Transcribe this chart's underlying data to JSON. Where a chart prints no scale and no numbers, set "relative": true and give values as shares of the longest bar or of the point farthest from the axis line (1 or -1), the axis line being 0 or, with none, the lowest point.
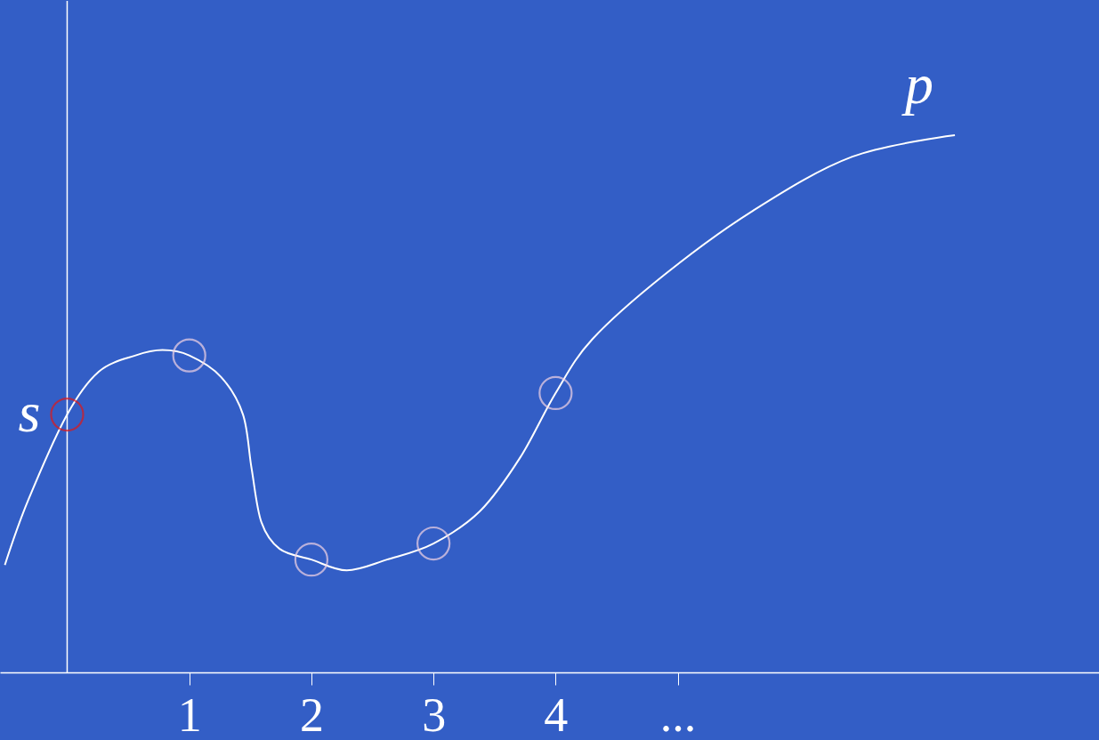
{
  "chart_data": {
    "type": "line",
    "relative": true,
    "xlim": [
      -0.55,
      8.45
    ],
    "xticks": [
      1,
      2,
      3,
      4,
      {
        "value": 5,
        "label": "..."
      }
    ],
    "grid": false,
    "annotations": [
      "s",
      "p"
    ],
    "series": [
      {
        "color": "#ffffff",
        "marker": "none",
        "x": [
          -0.51,
          -0.32,
          0,
          0.26,
          0.56,
          0.78,
          1.0,
          1.26,
          1.44,
          1.51,
          1.59,
          1.74,
          2.0,
          2.29,
          2.62,
          3.0,
          3.38,
          3.71,
          4.0,
          4.3,
          4.89,
          5.62,
          6.43,
          7.27
        ],
        "values": [
          0.2,
          0.32,
          0.48,
          0.56,
          0.59,
          0.6,
          0.59,
          0.55,
          0.48,
          0.38,
          0.28,
          0.23,
          0.21,
          0.19,
          0.21,
          0.24,
          0.3,
          0.4,
          0.52,
          0.62,
          0.74,
          0.86,
          0.96,
          1.0
        ]
      },
      {
        "type": "scatter",
        "color": "#e01818",
        "marker": "circle",
        "x": [
          0
        ],
        "values": [
          0.48
        ]
      },
      {
        "type": "scatter",
        "color": "#f2d4e4",
        "marker": "circle",
        "x": [
          1,
          2,
          3,
          4
        ],
        "values": [
          0.59,
          0.21,
          0.24,
          0.52
        ]
      }
    ]
  }
}
